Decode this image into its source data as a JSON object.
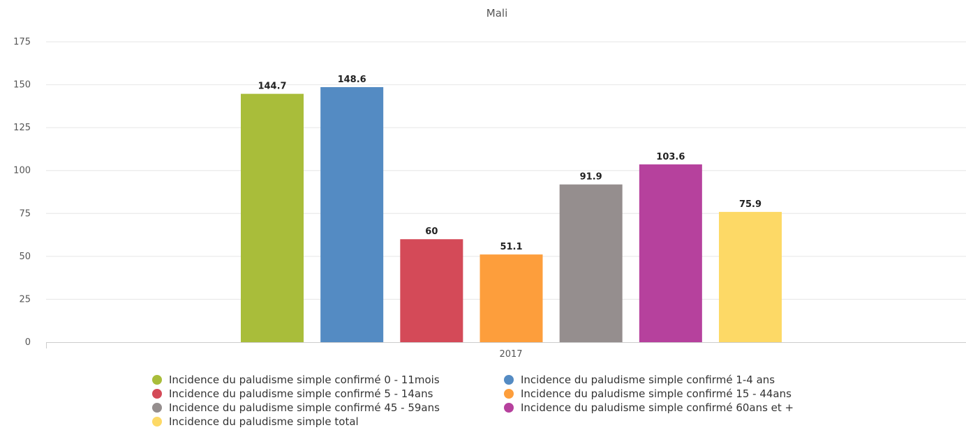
{
  "chart_data": {
    "type": "bar",
    "title": "Mali",
    "xlabel": "",
    "ylabel": "",
    "categories": [
      "2017"
    ],
    "ylim": [
      0,
      175
    ],
    "yticks": [
      0,
      25,
      50,
      75,
      100,
      125,
      150,
      175
    ],
    "grid": true,
    "legend_position": "bottom",
    "series": [
      {
        "name": "Incidence du paludisme simple confirmé 0 - 11mois",
        "values": [
          144.7
        ],
        "color": "#a9bd3a",
        "label": "144.7"
      },
      {
        "name": "Incidence du paludisme simple confirmé 1-4 ans",
        "values": [
          148.6
        ],
        "color": "#548bc3",
        "label": "148.6"
      },
      {
        "name": "Incidence du paludisme simple confirmé 5 - 14ans",
        "values": [
          60
        ],
        "color": "#d44a58",
        "label": "60"
      },
      {
        "name": "Incidence du paludisme simple confirmé 15 - 44ans",
        "values": [
          51.1
        ],
        "color": "#fd9e3c",
        "label": "51.1"
      },
      {
        "name": "Incidence du paludisme simple confirmé 45 - 59ans",
        "values": [
          91.9
        ],
        "color": "#958e8e",
        "label": "91.9"
      },
      {
        "name": "Incidence du paludisme simple confirmé 60ans et +",
        "values": [
          103.6
        ],
        "color": "#b6419d",
        "label": "103.6"
      },
      {
        "name": "Incidence du paludisme simple total",
        "values": [
          75.9
        ],
        "color": "#fdd966",
        "label": "75.9"
      }
    ]
  }
}
